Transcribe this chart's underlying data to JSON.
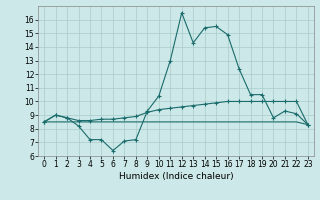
{
  "title": "",
  "xlabel": "Humidex (Indice chaleur)",
  "xlim": [
    -0.5,
    23.5
  ],
  "ylim": [
    6,
    17
  ],
  "yticks": [
    6,
    7,
    8,
    9,
    10,
    11,
    12,
    13,
    14,
    15,
    16
  ],
  "xticks": [
    0,
    1,
    2,
    3,
    4,
    5,
    6,
    7,
    8,
    9,
    10,
    11,
    12,
    13,
    14,
    15,
    16,
    17,
    18,
    19,
    20,
    21,
    22,
    23
  ],
  "background_color": "#cce8e8",
  "grid_color": "#aacccc",
  "line_color": "#1a6b6b",
  "line1_y": [
    8.5,
    9.0,
    8.8,
    8.2,
    7.2,
    7.2,
    6.4,
    7.1,
    7.2,
    9.3,
    10.4,
    13.0,
    16.5,
    14.3,
    15.4,
    15.5,
    14.9,
    12.4,
    10.5,
    10.5,
    8.8,
    9.3,
    9.1,
    8.3
  ],
  "line2_y": [
    8.5,
    9.0,
    8.8,
    8.6,
    8.6,
    8.7,
    8.7,
    8.8,
    8.9,
    9.2,
    9.4,
    9.5,
    9.6,
    9.7,
    9.8,
    9.9,
    10.0,
    10.0,
    10.0,
    10.0,
    10.0,
    10.0,
    10.0,
    8.3
  ],
  "line3_y": [
    8.5,
    8.5,
    8.5,
    8.5,
    8.5,
    8.5,
    8.5,
    8.5,
    8.5,
    8.5,
    8.5,
    8.5,
    8.5,
    8.5,
    8.5,
    8.5,
    8.5,
    8.5,
    8.5,
    8.5,
    8.5,
    8.5,
    8.5,
    8.3
  ],
  "x": [
    0,
    1,
    2,
    3,
    4,
    5,
    6,
    7,
    8,
    9,
    10,
    11,
    12,
    13,
    14,
    15,
    16,
    17,
    18,
    19,
    20,
    21,
    22,
    23
  ],
  "tick_fontsize": 5.5,
  "xlabel_fontsize": 6.5
}
